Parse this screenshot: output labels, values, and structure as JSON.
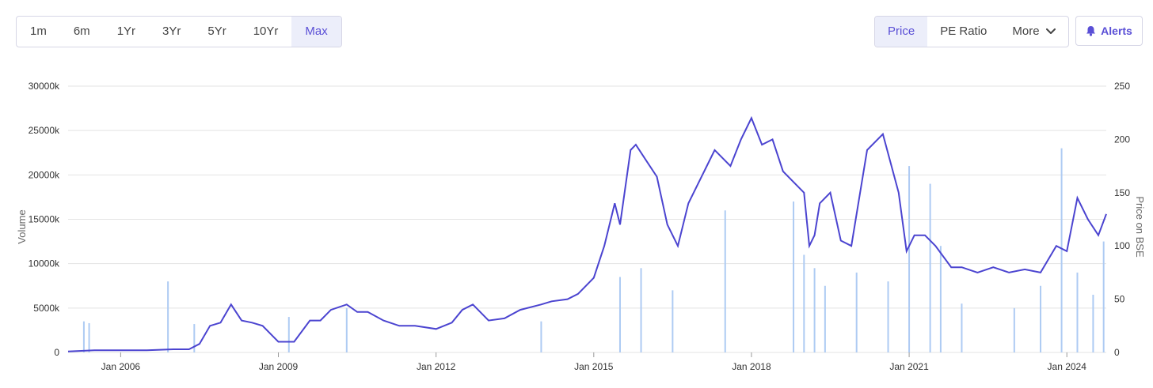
{
  "range_buttons": [
    "1m",
    "6m",
    "1Yr",
    "3Yr",
    "5Yr",
    "10Yr",
    "Max"
  ],
  "active_range": "Max",
  "metric_buttons": {
    "price": "Price",
    "pe_ratio": "PE Ratio",
    "more": "More"
  },
  "active_metric": "Price",
  "alerts_label": "Alerts",
  "colors": {
    "accent": "#5a4fd6",
    "price_line": "#4b44d0",
    "volume_bar": "#aecbf3",
    "grid": "#e3e3e3"
  },
  "chart_data": {
    "type": "line",
    "title": "",
    "xlabel": "",
    "ylabel_left": "Volume",
    "ylabel_right": "Price on BSE",
    "y_left_ticks": [
      "0",
      "5000k",
      "10000k",
      "15000k",
      "20000k",
      "25000k",
      "30000k"
    ],
    "y_left_range": [
      0,
      30000
    ],
    "y_left_unit": "k",
    "y_right_ticks": [
      "0",
      "50",
      "100",
      "150",
      "200",
      "250"
    ],
    "y_right_range": [
      0,
      250
    ],
    "x_ticks": [
      "Jan 2006",
      "Jan 2009",
      "Jan 2012",
      "Jan 2015",
      "Jan 2018",
      "Jan 2021",
      "Jan 2024"
    ],
    "x_range": [
      2005.0,
      2024.75
    ],
    "grid": "horizontal",
    "series": [
      {
        "name": "Price on BSE",
        "axis": "right",
        "x": [
          2005.0,
          2005.5,
          2006.0,
          2006.5,
          2007.0,
          2007.3,
          2007.5,
          2007.7,
          2007.9,
          2008.1,
          2008.3,
          2008.5,
          2008.7,
          2008.9,
          2009.0,
          2009.3,
          2009.6,
          2009.8,
          2010.0,
          2010.3,
          2010.5,
          2010.7,
          2011.0,
          2011.3,
          2011.6,
          2012.0,
          2012.3,
          2012.5,
          2012.7,
          2013.0,
          2013.3,
          2013.6,
          2014.0,
          2014.2,
          2014.5,
          2014.7,
          2015.0,
          2015.2,
          2015.4,
          2015.5,
          2015.7,
          2015.8,
          2016.0,
          2016.2,
          2016.4,
          2016.6,
          2016.8,
          2017.0,
          2017.3,
          2017.6,
          2017.8,
          2018.0,
          2018.2,
          2018.4,
          2018.6,
          2018.8,
          2019.0,
          2019.1,
          2019.2,
          2019.3,
          2019.5,
          2019.7,
          2019.9,
          2020.0,
          2020.2,
          2020.5,
          2020.8,
          2020.95,
          2021.1,
          2021.3,
          2021.5,
          2021.8,
          2022.0,
          2022.3,
          2022.6,
          2022.9,
          2023.2,
          2023.5,
          2023.8,
          2024.0,
          2024.2,
          2024.4,
          2024.6,
          2024.75
        ],
        "values": [
          1,
          2,
          2,
          2,
          3,
          3,
          8,
          25,
          28,
          45,
          30,
          28,
          25,
          15,
          10,
          10,
          30,
          30,
          40,
          45,
          38,
          38,
          30,
          25,
          25,
          22,
          28,
          40,
          45,
          30,
          32,
          40,
          45,
          48,
          50,
          55,
          70,
          100,
          140,
          120,
          190,
          195,
          180,
          165,
          120,
          100,
          140,
          160,
          190,
          175,
          200,
          220,
          195,
          200,
          170,
          160,
          150,
          100,
          110,
          140,
          150,
          105,
          100,
          130,
          190,
          205,
          150,
          95,
          110,
          110,
          100,
          80,
          80,
          75,
          80,
          75,
          78,
          75,
          100,
          95,
          145,
          125,
          110,
          130
        ]
      },
      {
        "name": "Volume",
        "axis": "left",
        "type": "bar",
        "x": [
          2005.3,
          2005.4,
          2006.9,
          2007.4,
          2009.2,
          2010.3,
          2014.0,
          2015.5,
          2015.9,
          2016.5,
          2017.5,
          2018.8,
          2019.0,
          2019.2,
          2019.4,
          2020.0,
          2020.6,
          2021.0,
          2021.4,
          2021.6,
          2022.0,
          2023.0,
          2023.5,
          2023.9,
          2024.2,
          2024.5,
          2024.7
        ],
        "values": [
          3500,
          3300,
          8000,
          3200,
          4000,
          5000,
          3500,
          8500,
          9500,
          7000,
          16000,
          17000,
          11000,
          9500,
          7500,
          9000,
          8000,
          21000,
          19000,
          12000,
          5500,
          5000,
          7500,
          23000,
          9000,
          6500,
          12500
        ]
      }
    ]
  }
}
